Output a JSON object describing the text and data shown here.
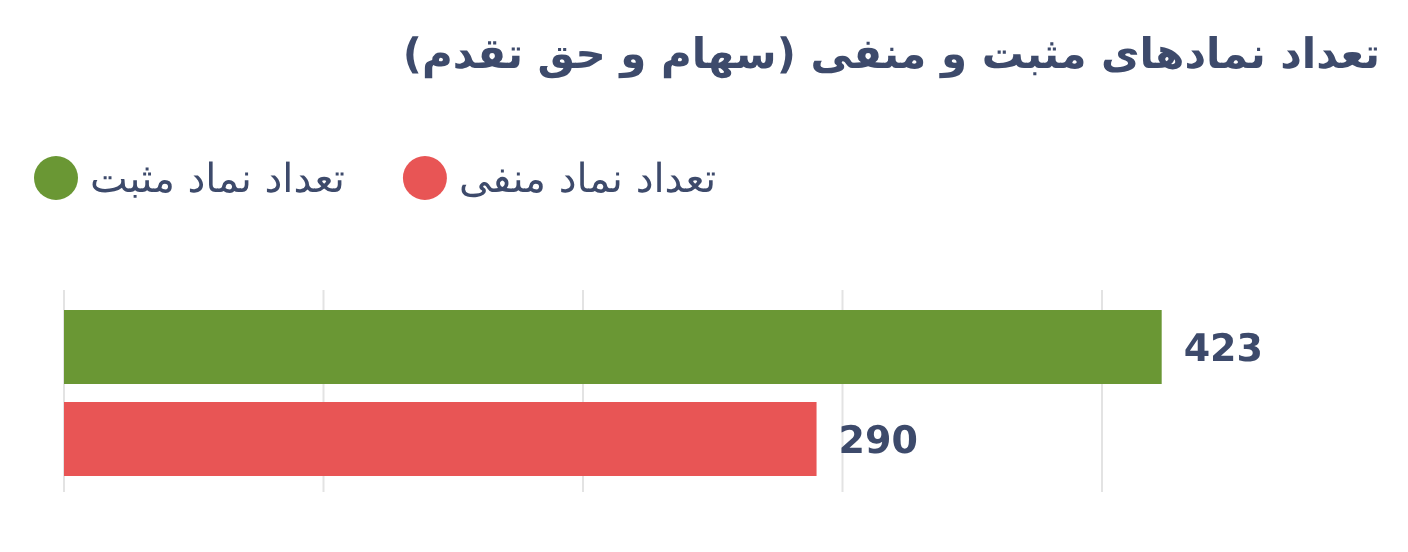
{
  "chart_data": {
    "type": "bar",
    "orientation": "horizontal",
    "title": "تعداد نمادهای مثبت و منفی (سهام و حق تقدم)",
    "categories": [
      null
    ],
    "series": [
      {
        "name": "تعداد نماد مثبت",
        "color": "#6a9734",
        "values": [
          423
        ]
      },
      {
        "name": "تعداد نماد منفی",
        "color": "#e85555",
        "values": [
          290
        ]
      }
    ],
    "xticks": [
      {
        "value": 0,
        "label": null
      },
      {
        "value": 100,
        "label": null
      },
      {
        "value": 200,
        "label": null
      },
      {
        "value": 300,
        "label": null
      },
      {
        "value": 400,
        "label": null
      }
    ],
    "grid": "x",
    "legend": "top left",
    "data_labels": true
  }
}
